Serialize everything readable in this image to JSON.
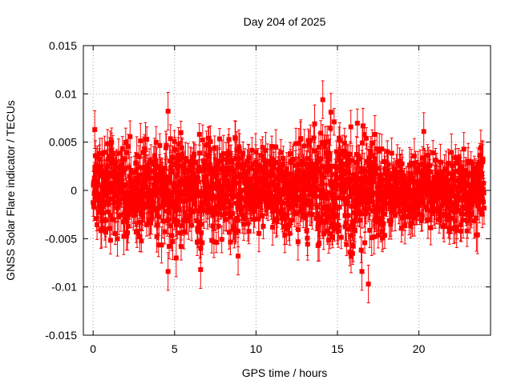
{
  "chart_data": {
    "type": "scatter",
    "title": "Day 204 of 2025",
    "xlabel": "GPS time / hours",
    "ylabel": "GNSS Solar Flare indicator / TECUs",
    "xlim": [
      -0.6,
      24.4
    ],
    "ylim": [
      -0.015,
      0.015
    ],
    "xticks": [
      0,
      5,
      10,
      15,
      20
    ],
    "xtick_labels": [
      "0",
      "5",
      "10",
      "15",
      "20"
    ],
    "yticks": [
      -0.015,
      -0.01,
      -0.005,
      0,
      0.005,
      0.01,
      0.015
    ],
    "ytick_labels": [
      "-0.015",
      "-0.01",
      "-0.005",
      "0",
      "0.005",
      "0.01",
      "0.015"
    ],
    "grid": true,
    "color": "#ff0000",
    "error_bars": true,
    "series": [
      {
        "x_range": [
          0,
          24
        ],
        "typical_spread": 0.003,
        "typical_error": 0.0015,
        "envelope": [
          {
            "x": 0,
            "amp": 0.0058
          },
          {
            "x": 3,
            "amp": 0.0055
          },
          {
            "x": 5,
            "amp": 0.006
          },
          {
            "x": 7,
            "amp": 0.0062
          },
          {
            "x": 9,
            "amp": 0.0055
          },
          {
            "x": 10,
            "amp": 0.0045
          },
          {
            "x": 12,
            "amp": 0.005
          },
          {
            "x": 13.5,
            "amp": 0.0062
          },
          {
            "x": 14.5,
            "amp": 0.0072
          },
          {
            "x": 16,
            "amp": 0.0072
          },
          {
            "x": 17,
            "amp": 0.0065
          },
          {
            "x": 18.5,
            "amp": 0.004
          },
          {
            "x": 20,
            "amp": 0.0038
          },
          {
            "x": 22,
            "amp": 0.0045
          },
          {
            "x": 24,
            "amp": 0.0048
          }
        ],
        "notable_points": [
          {
            "x": 0.1,
            "y": 0.0063
          },
          {
            "x": 4.6,
            "y": 0.0082
          },
          {
            "x": 4.6,
            "y": -0.0084
          },
          {
            "x": 5.1,
            "y": -0.007
          },
          {
            "x": 6.6,
            "y": -0.0082
          },
          {
            "x": 8.9,
            "y": -0.0068
          },
          {
            "x": 13.6,
            "y": 0.0069
          },
          {
            "x": 14.1,
            "y": 0.0094
          },
          {
            "x": 14.6,
            "y": 0.0081
          },
          {
            "x": 16.5,
            "y": -0.0084
          },
          {
            "x": 16.9,
            "y": -0.0097
          },
          {
            "x": 17.3,
            "y": 0.0058
          },
          {
            "x": 20.3,
            "y": 0.0061
          },
          {
            "x": 23.6,
            "y": -0.0046
          }
        ]
      }
    ]
  }
}
